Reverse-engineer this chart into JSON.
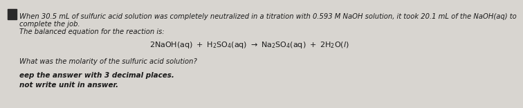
{
  "bg_color": "#d8d5d0",
  "square_color": "#2a2a2a",
  "text_color": "#1a1a1a",
  "line1": "When 30.5 mL of sulfuric acid solution was completely neutralized in a titration with 0.593 M NaOH solution, it took 20.1 mL of the NaOH(aq) to",
  "line2": "complete the job.",
  "line3": "The balanced equation for the reaction is:",
  "line5": "What was the molarity of the sulfuric acid solution?",
  "line6": "eep the answer with 3 decimal places.",
  "line7": "not write unit in answer.",
  "eq_fontsize": 8.0,
  "body_fontsize": 7.2,
  "bold_fontsize": 7.5
}
